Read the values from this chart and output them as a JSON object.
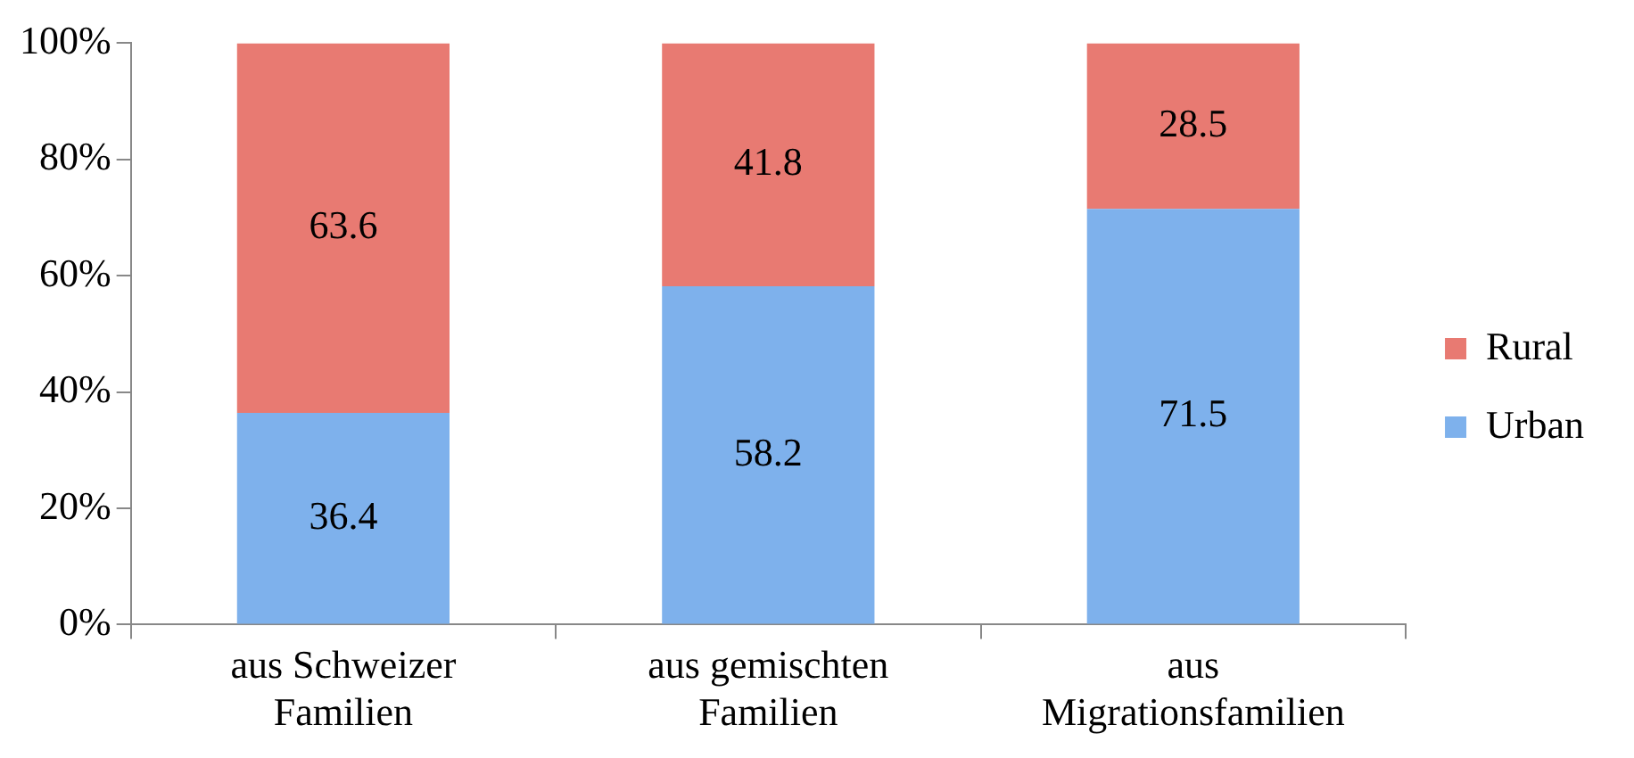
{
  "chart_data": {
    "type": "bar",
    "stacked": true,
    "categories": [
      "aus Schweizer Familien",
      "aus gemischten Familien",
      "aus Migrationsfamilien"
    ],
    "series": [
      {
        "name": "Urban",
        "color": "#7eb1ec",
        "values": [
          36.4,
          58.2,
          71.5
        ]
      },
      {
        "name": "Rural",
        "color": "#e87a72",
        "values": [
          63.6,
          41.8,
          28.5
        ]
      }
    ],
    "ylim": [
      0,
      100
    ],
    "yticks": [
      {
        "value": 0,
        "label": "0%"
      },
      {
        "value": 20,
        "label": "20%"
      },
      {
        "value": 40,
        "label": "40%"
      },
      {
        "value": 60,
        "label": "60%"
      },
      {
        "value": 80,
        "label": "80%"
      },
      {
        "value": 100,
        "label": "100%"
      }
    ],
    "grid": false,
    "legend": "right",
    "data_labels": true
  }
}
